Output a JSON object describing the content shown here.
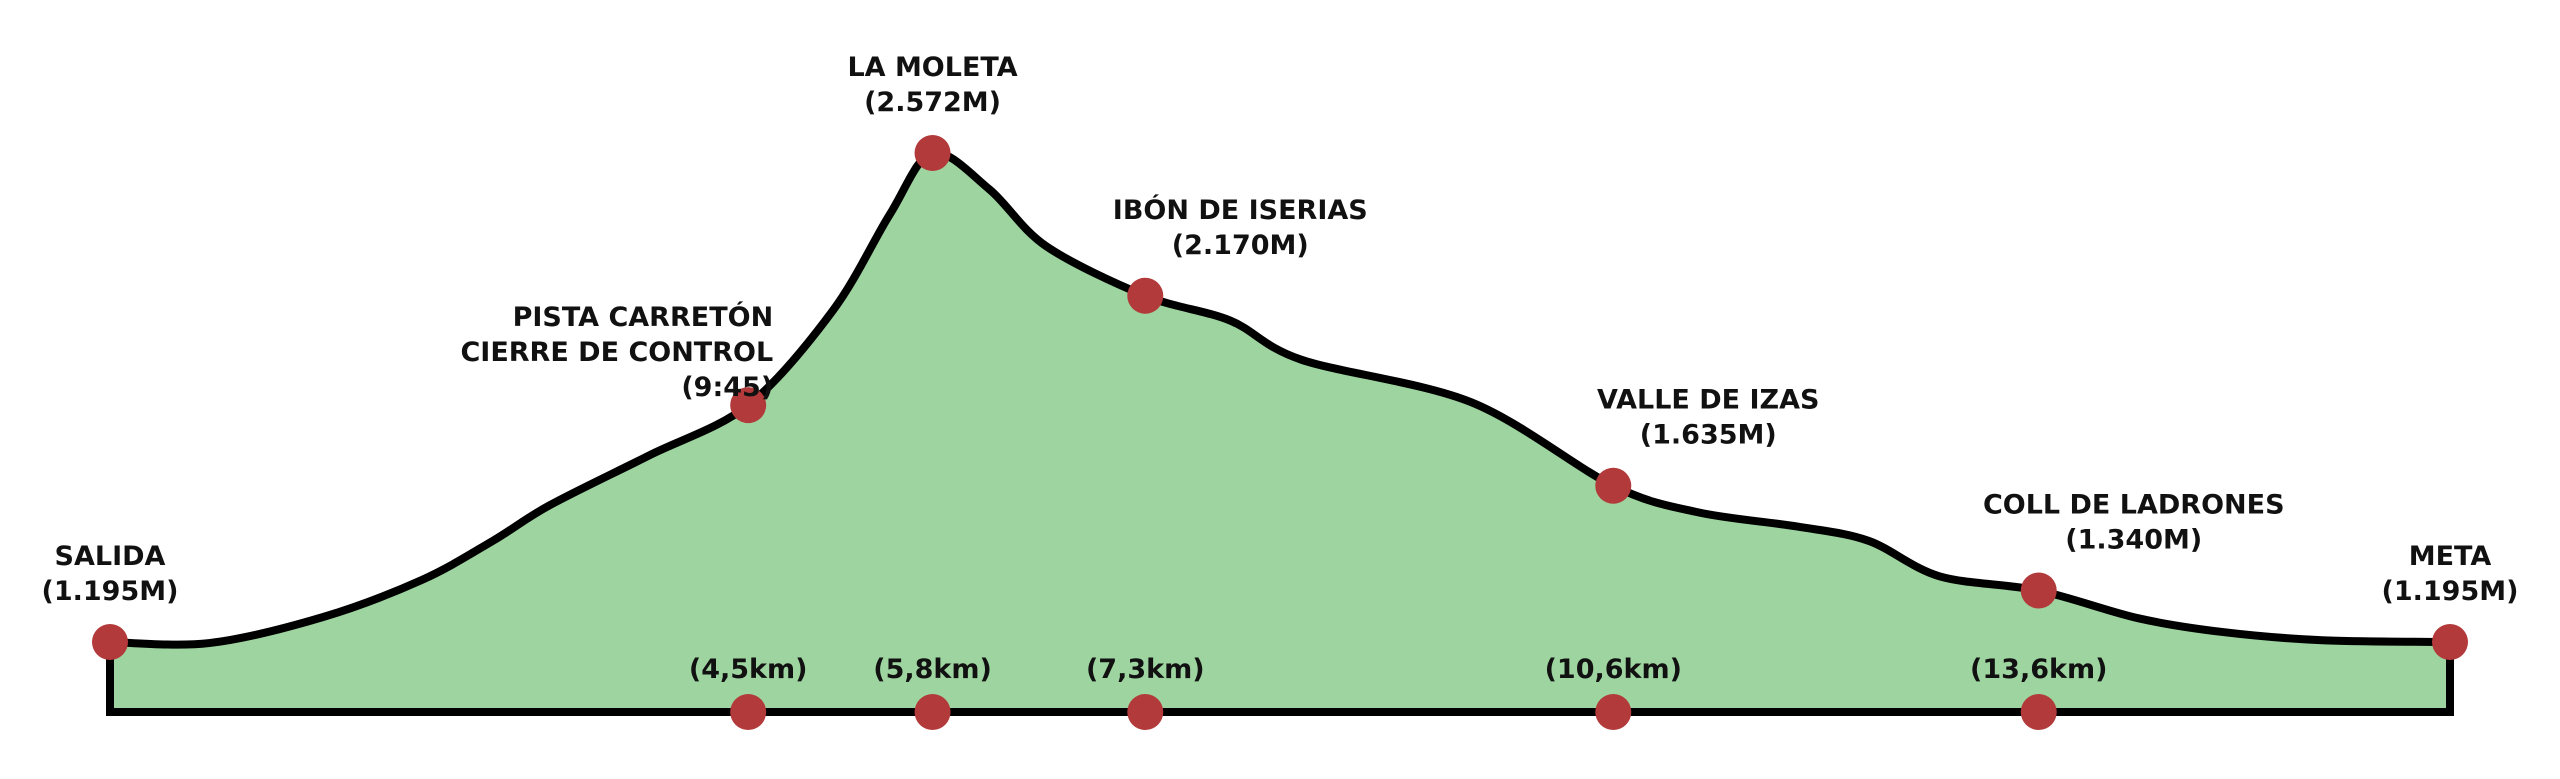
{
  "chart_data": {
    "type": "area",
    "title": "",
    "xlabel": "",
    "ylabel": "",
    "xlim": [
      0,
      16.5
    ],
    "ylim": [
      1000,
      2600
    ],
    "grid": false,
    "colors": {
      "fill": "#9dd49f",
      "stroke": "#000000",
      "marker": "#b23a3a"
    },
    "profile": [
      {
        "x": 0.0,
        "y": 1195
      },
      {
        "x": 0.7,
        "y": 1192
      },
      {
        "x": 1.5,
        "y": 1265
      },
      {
        "x": 2.2,
        "y": 1370
      },
      {
        "x": 2.7,
        "y": 1480
      },
      {
        "x": 3.1,
        "y": 1580
      },
      {
        "x": 3.8,
        "y": 1720
      },
      {
        "x": 4.5,
        "y": 1862
      },
      {
        "x": 5.1,
        "y": 2130
      },
      {
        "x": 5.5,
        "y": 2400
      },
      {
        "x": 5.8,
        "y": 2572
      },
      {
        "x": 6.2,
        "y": 2470
      },
      {
        "x": 6.6,
        "y": 2310
      },
      {
        "x": 7.3,
        "y": 2170
      },
      {
        "x": 7.9,
        "y": 2100
      },
      {
        "x": 8.4,
        "y": 1990
      },
      {
        "x": 9.6,
        "y": 1870
      },
      {
        "x": 10.6,
        "y": 1635
      },
      {
        "x": 11.2,
        "y": 1560
      },
      {
        "x": 11.9,
        "y": 1520
      },
      {
        "x": 12.4,
        "y": 1480
      },
      {
        "x": 12.9,
        "y": 1380
      },
      {
        "x": 13.6,
        "y": 1340
      },
      {
        "x": 14.3,
        "y": 1262
      },
      {
        "x": 14.9,
        "y": 1223
      },
      {
        "x": 15.6,
        "y": 1200
      },
      {
        "x": 16.5,
        "y": 1195
      }
    ],
    "waypoints": [
      {
        "x": 0.0,
        "y": 1195,
        "lines": [
          "SALIDA",
          "(1.195M)"
        ],
        "anchor": "middle",
        "label_pos": "above"
      },
      {
        "x": 4.5,
        "y": 1862,
        "lines": [
          "PISTA CARRETÓN",
          "CIERRE DE CONTROL",
          "(9:45)"
        ],
        "anchor": "end",
        "label_pos": "above-left"
      },
      {
        "x": 5.8,
        "y": 2572,
        "lines": [
          "LA MOLETA",
          "(2.572M)"
        ],
        "anchor": "middle",
        "label_pos": "above"
      },
      {
        "x": 7.3,
        "y": 2170,
        "lines": [
          "IBÓN DE ISERIAS",
          "(2.170M)"
        ],
        "anchor": "middle",
        "label_pos": "above-right"
      },
      {
        "x": 10.6,
        "y": 1635,
        "lines": [
          "VALLE DE IZAS",
          "(1.635M)"
        ],
        "anchor": "middle",
        "label_pos": "above-right"
      },
      {
        "x": 13.6,
        "y": 1340,
        "lines": [
          "COLL DE LADRONES",
          "(1.340M)"
        ],
        "anchor": "middle",
        "label_pos": "above-right"
      },
      {
        "x": 16.5,
        "y": 1195,
        "lines": [
          "META",
          "(1.195M)"
        ],
        "anchor": "middle",
        "label_pos": "above"
      }
    ],
    "distance_markers": [
      {
        "x": 4.5,
        "label": "(4,5km)"
      },
      {
        "x": 5.8,
        "label": "(5,8km)"
      },
      {
        "x": 7.3,
        "label": "(7,3km)"
      },
      {
        "x": 10.6,
        "label": "(10,6km)"
      },
      {
        "x": 13.6,
        "label": "(13,6km)"
      }
    ]
  }
}
